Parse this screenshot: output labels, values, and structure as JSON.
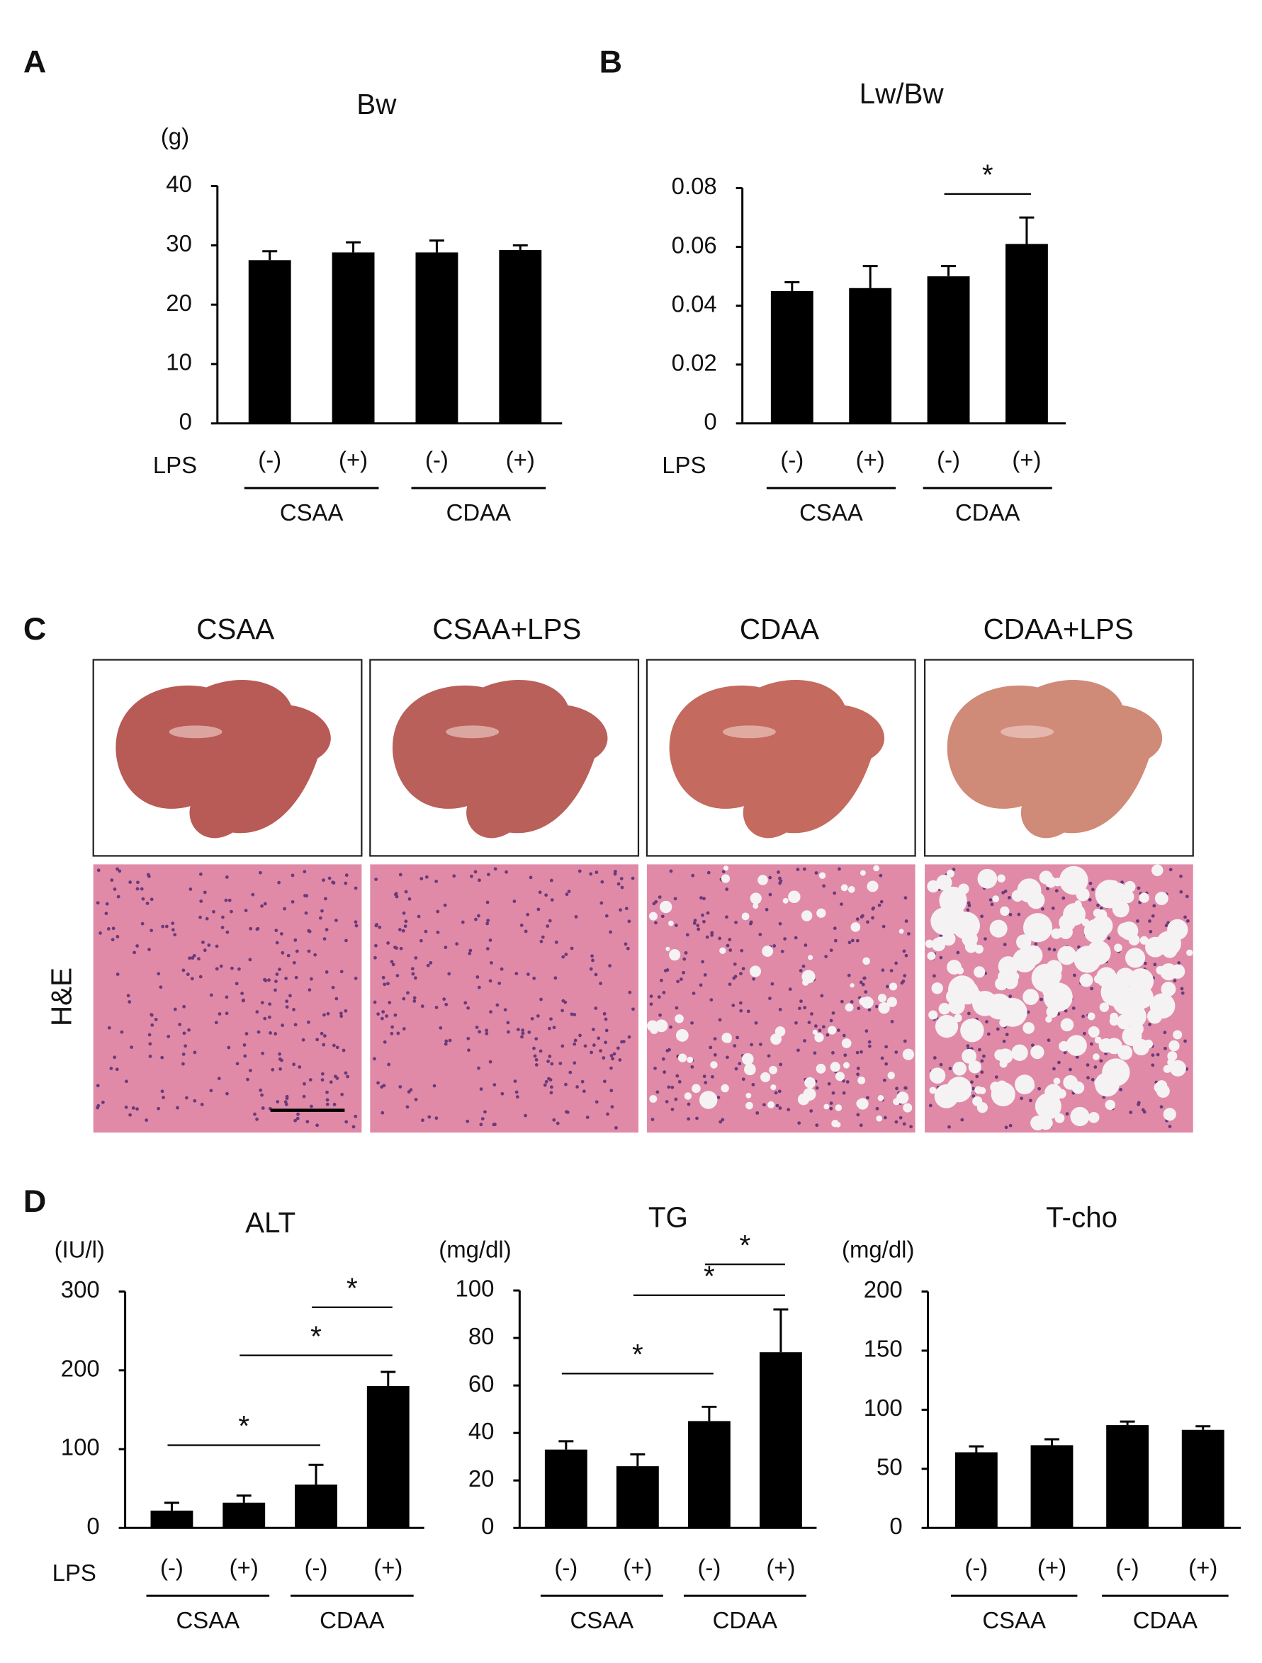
{
  "chart_data": [
    {
      "type": "bar",
      "panel_label": "A",
      "title": "Bw",
      "y_unit": "(g)",
      "row_label": "LPS",
      "categories": [
        "(-)",
        "(+)",
        "(-)",
        "(+)"
      ],
      "groups": [
        "CSAA",
        "CDAA"
      ],
      "values": [
        27.5,
        28.8,
        28.8,
        29.2
      ],
      "errors": [
        1.5,
        1.7,
        2.0,
        0.8
      ],
      "color": "#000000",
      "ylim": [
        0,
        40
      ],
      "yticks": [
        0,
        10,
        20,
        30,
        40
      ],
      "annotations": []
    },
    {
      "type": "bar",
      "panel_label": "B",
      "title": "Lw/Bw",
      "row_label": "LPS",
      "categories": [
        "(-)",
        "(+)",
        "(-)",
        "(+)"
      ],
      "groups": [
        "CSAA",
        "CDAA"
      ],
      "values": [
        0.045,
        0.046,
        0.05,
        0.061
      ],
      "errors": [
        0.003,
        0.0075,
        0.0035,
        0.009
      ],
      "color": "#000000",
      "ylim": [
        0,
        0.08
      ],
      "yticks": [
        0,
        0.02,
        0.04,
        0.06,
        0.08
      ],
      "annotations": [
        {
          "text": "*",
          "between": [
            2,
            3
          ],
          "y": 0.078
        }
      ]
    },
    {
      "type": "bar",
      "panel_label": "D",
      "title": "ALT",
      "y_unit": "(IU/l)",
      "row_label": "LPS",
      "categories": [
        "(-)",
        "(+)",
        "(-)",
        "(+)"
      ],
      "groups": [
        "CSAA",
        "CDAA"
      ],
      "values": [
        22,
        32,
        55,
        180
      ],
      "errors": [
        10,
        9,
        25,
        18
      ],
      "color": "#000000",
      "ylim": [
        0,
        300
      ],
      "yticks": [
        0,
        100,
        200,
        300
      ],
      "annotations": [
        {
          "text": "*",
          "between": [
            0,
            2
          ],
          "y": 105
        },
        {
          "text": "*",
          "between": [
            1,
            3
          ],
          "y": 219
        },
        {
          "text": "*",
          "between": [
            2,
            3
          ],
          "y": 280
        }
      ]
    },
    {
      "type": "bar",
      "title": "TG",
      "y_unit": "(mg/dl)",
      "categories": [
        "(-)",
        "(+)",
        "(-)",
        "(+)"
      ],
      "groups": [
        "CSAA",
        "CDAA"
      ],
      "values": [
        33,
        26,
        45,
        74
      ],
      "errors": [
        3.5,
        5,
        6,
        18
      ],
      "color": "#000000",
      "ylim": [
        0,
        100
      ],
      "yticks": [
        0,
        20,
        40,
        60,
        80,
        100
      ],
      "annotations": [
        {
          "text": "*",
          "between": [
            0,
            2
          ],
          "y": 65
        },
        {
          "text": "*",
          "between": [
            1,
            3
          ],
          "y": 98
        },
        {
          "text": "*",
          "between": [
            2,
            3
          ],
          "y": 111
        }
      ]
    },
    {
      "type": "bar",
      "title": "T-cho",
      "y_unit": "(mg/dl)",
      "categories": [
        "(-)",
        "(+)",
        "(-)",
        "(+)"
      ],
      "groups": [
        "CSAA",
        "CDAA"
      ],
      "values": [
        64,
        70,
        87,
        83
      ],
      "errors": [
        5,
        5,
        3,
        3
      ],
      "color": "#000000",
      "ylim": [
        0,
        200
      ],
      "yticks": [
        0,
        50,
        100,
        150,
        200
      ],
      "annotations": []
    }
  ],
  "panel_c": {
    "panel_label": "C",
    "columns": [
      "CSAA",
      "CSAA+LPS",
      "CDAA",
      "CDAA+LPS"
    ],
    "row_label": "H&E"
  }
}
